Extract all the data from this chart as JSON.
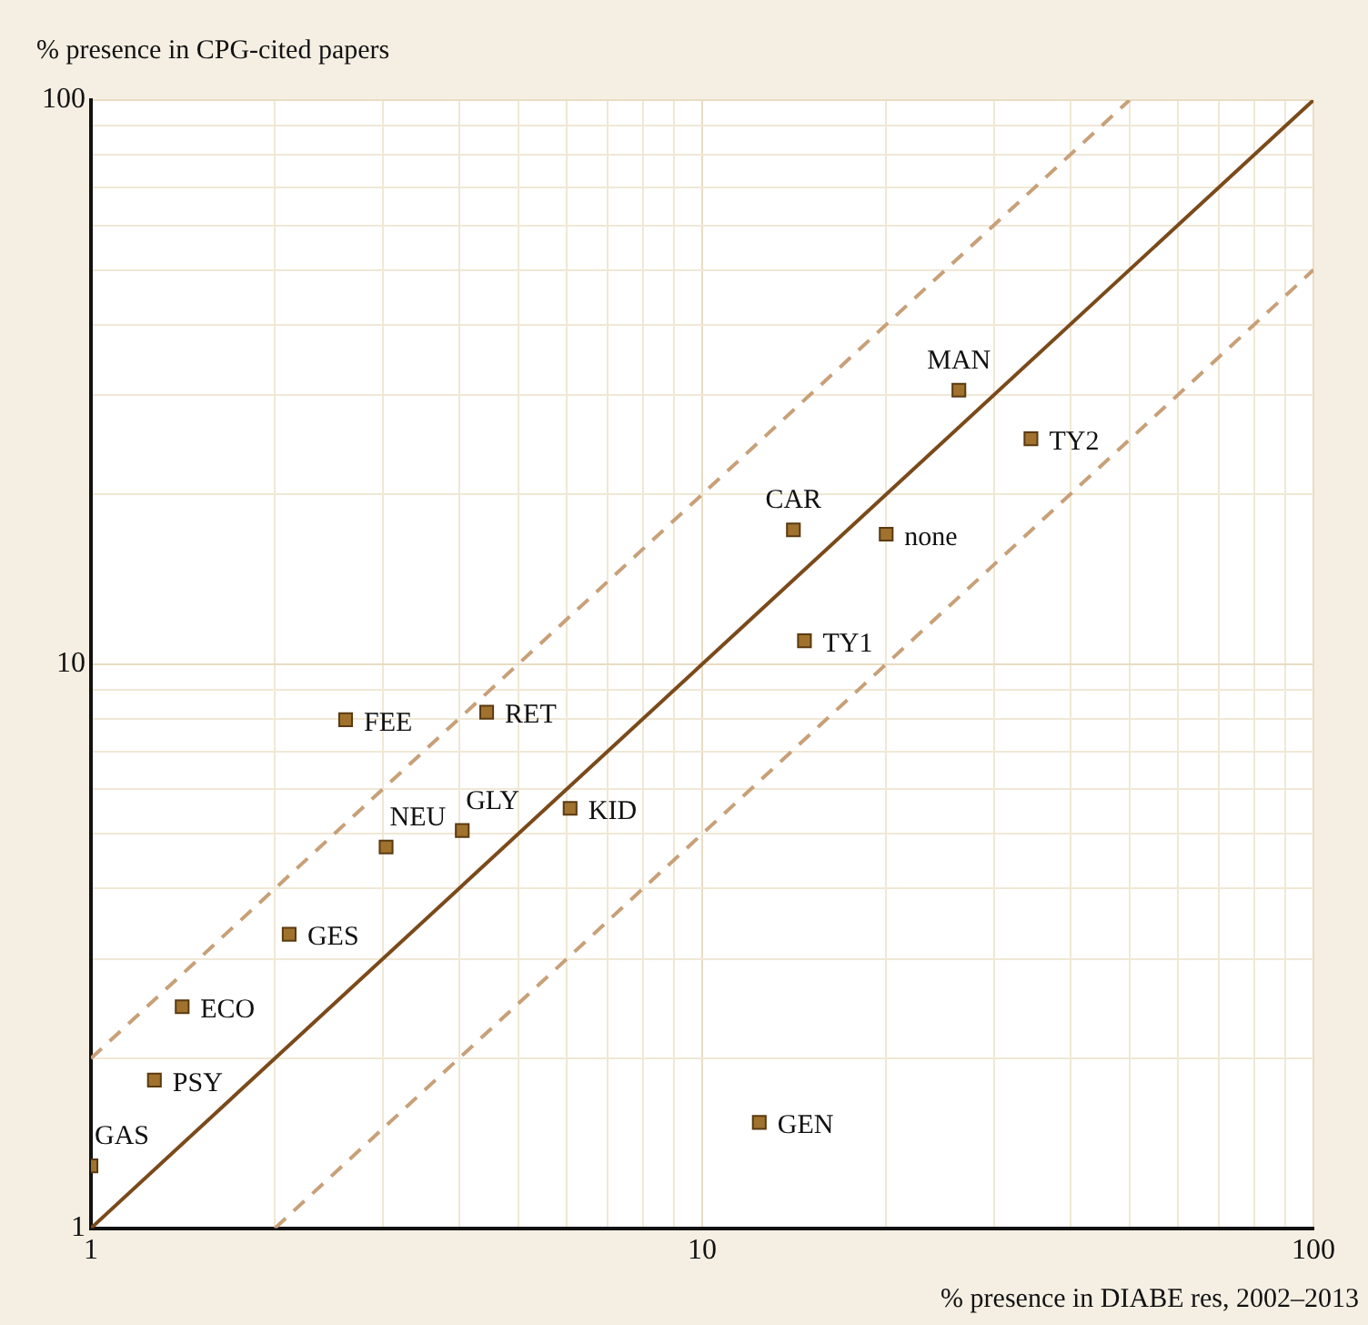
{
  "chart_data": {
    "type": "scatter",
    "xlabel": "% presence in DIABE res, 2002–2013",
    "ylabel": "% presence in CPG-cited papers",
    "log": "xy",
    "grid": true,
    "legend": false,
    "marker": "square",
    "xlim": [
      1,
      100
    ],
    "ylim": [
      1,
      100
    ],
    "xticks": [
      1,
      {
        "value": 2,
        "label": null
      },
      {
        "value": 3,
        "label": null
      },
      {
        "value": 4,
        "label": null
      },
      {
        "value": 5,
        "label": null
      },
      {
        "value": 6,
        "label": null
      },
      {
        "value": 7,
        "label": null
      },
      {
        "value": 8,
        "label": null
      },
      {
        "value": 9,
        "label": null
      },
      10,
      {
        "value": 20,
        "label": null
      },
      {
        "value": 30,
        "label": null
      },
      {
        "value": 40,
        "label": null
      },
      {
        "value": 50,
        "label": null
      },
      {
        "value": 60,
        "label": null
      },
      {
        "value": 70,
        "label": null
      },
      {
        "value": 80,
        "label": null
      },
      {
        "value": 90,
        "label": null
      },
      100
    ],
    "yticks": [
      1,
      {
        "value": 2,
        "label": null
      },
      {
        "value": 3,
        "label": null
      },
      {
        "value": 4,
        "label": null
      },
      {
        "value": 5,
        "label": null
      },
      {
        "value": 6,
        "label": null
      },
      {
        "value": 7,
        "label": null
      },
      {
        "value": 8,
        "label": null
      },
      {
        "value": 9,
        "label": null
      },
      10,
      {
        "value": 20,
        "label": null
      },
      {
        "value": 30,
        "label": null
      },
      {
        "value": 40,
        "label": null
      },
      {
        "value": 50,
        "label": null
      },
      {
        "value": 60,
        "label": null
      },
      {
        "value": 70,
        "label": null
      },
      {
        "value": 80,
        "label": null
      },
      {
        "value": 90,
        "label": null
      },
      100
    ],
    "series": [
      {
        "type": "line",
        "color": "#7a4a1a",
        "line_style": "solid",
        "marker": "none",
        "x": [
          1,
          100
        ],
        "values": [
          1,
          100
        ]
      },
      {
        "type": "line",
        "color": "#c8a078",
        "line_style": "dashed",
        "marker": "none",
        "x": [
          1,
          50
        ],
        "values": [
          2,
          100
        ]
      },
      {
        "type": "line",
        "color": "#c8a078",
        "line_style": "dashed",
        "marker": "none",
        "x": [
          2,
          100
        ],
        "values": [
          1,
          50
        ]
      },
      {
        "color": "#a0722e",
        "x": [
          1.0,
          1.27,
          1.41,
          2.11,
          3.04,
          4.05,
          6.08,
          2.61,
          4.44,
          14.1,
          14.7,
          20.0,
          26.3,
          34.5,
          12.4
        ],
        "values": [
          1.29,
          1.83,
          2.47,
          3.32,
          4.74,
          5.07,
          5.55,
          7.97,
          8.22,
          17.3,
          11.0,
          17.0,
          30.6,
          25.1,
          1.54
        ],
        "value_labels": [
          "GAS",
          "PSY",
          "ECO",
          "GES",
          "NEU",
          "GLY",
          "KID",
          "FEE",
          "RET",
          "CAR",
          "TY1",
          "none",
          "MAN",
          "TY2",
          "GEN"
        ]
      }
    ]
  }
}
